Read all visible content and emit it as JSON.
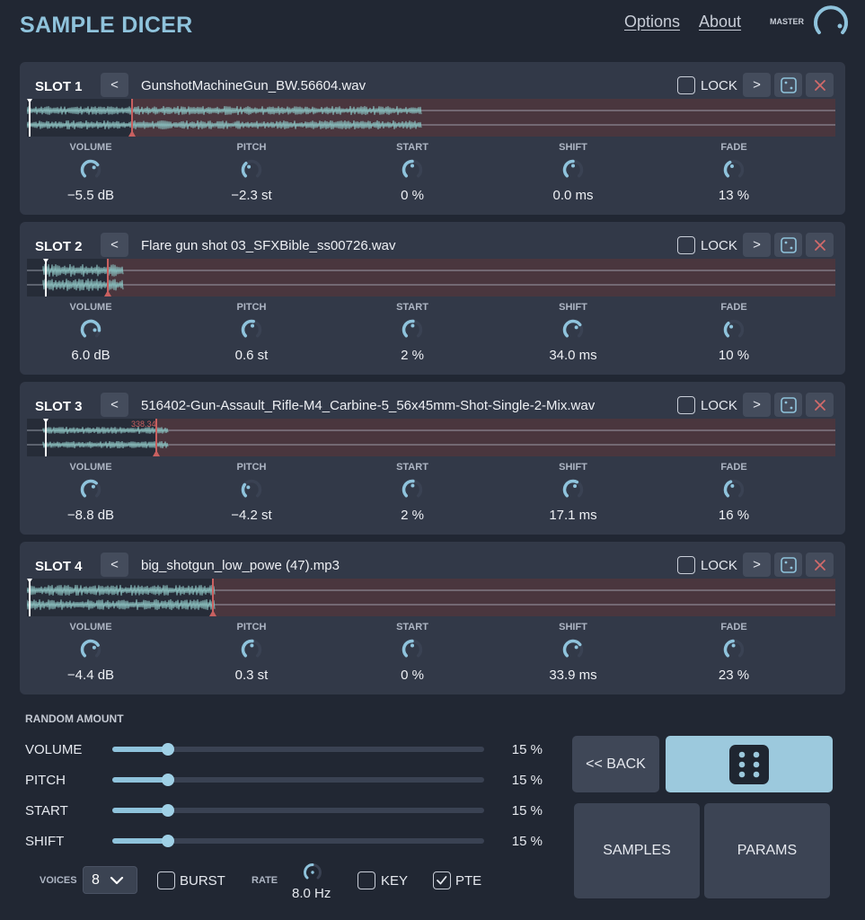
{
  "header": {
    "title": "SAMPLE DICER",
    "options": "Options",
    "about": "About",
    "master": "MASTER"
  },
  "colors": {
    "accent": "#8fc3dc",
    "panel": "#323948",
    "background": "#212733",
    "waveform": "#86b8b8",
    "region": "#c96060"
  },
  "param_labels": [
    "VOLUME",
    "PITCH",
    "START",
    "SHIFT",
    "FADE"
  ],
  "slots": [
    {
      "title": "SLOT 1",
      "file": "GunshotMachineGun_BW.56604.wav",
      "lock": "LOCK",
      "locked": false,
      "values": [
        "−5.5 dB",
        "−2.3 st",
        "0 %",
        "0.0 ms",
        "13 %"
      ],
      "knobs": [
        0.7,
        0.35,
        0.5,
        0.5,
        0.4
      ],
      "region_start": 0.13,
      "start_marker": 0.0,
      "region_label": ""
    },
    {
      "title": "SLOT 2",
      "file": "Flare gun shot 03_SFXBible_ss00726.wav",
      "lock": "LOCK",
      "locked": false,
      "values": [
        "6.0 dB",
        "0.6 st",
        "2 %",
        "34.0 ms",
        "10 %"
      ],
      "knobs": [
        0.85,
        0.55,
        0.52,
        0.7,
        0.35
      ],
      "region_start": 0.1,
      "start_marker": 0.02,
      "region_label": ""
    },
    {
      "title": "SLOT 3",
      "file": "516402-Gun-Assault_Rifle-M4_Carbine-5_56x45mm-Shot-Single-2-Mix.wav",
      "lock": "LOCK",
      "locked": false,
      "values": [
        "−8.8 dB",
        "−4.2 st",
        "2 %",
        "17.1 ms",
        "16 %"
      ],
      "knobs": [
        0.65,
        0.3,
        0.52,
        0.6,
        0.42
      ],
      "region_start": 0.16,
      "start_marker": 0.02,
      "region_label": "338.34"
    },
    {
      "title": "SLOT 4",
      "file": "big_shotgun_low_powe (47).mp3",
      "lock": "LOCK",
      "locked": false,
      "values": [
        "−4.4 dB",
        "0.3 st",
        "0 %",
        "33.9 ms",
        "23 %"
      ],
      "knobs": [
        0.72,
        0.52,
        0.5,
        0.7,
        0.48
      ],
      "region_start": 0.23,
      "start_marker": 0.0,
      "region_label": ""
    }
  ],
  "random": {
    "title": "RANDOM AMOUNT",
    "rows": [
      {
        "label": "VOLUME",
        "value": "15 %",
        "fraction": 0.15
      },
      {
        "label": "PITCH",
        "value": "15 %",
        "fraction": 0.15
      },
      {
        "label": "START",
        "value": "15 %",
        "fraction": 0.15
      },
      {
        "label": "SHIFT",
        "value": "15 %",
        "fraction": 0.15
      }
    ]
  },
  "bottom": {
    "voices_label": "VOICES",
    "voices_value": "8",
    "burst": "BURST",
    "burst_checked": false,
    "rate_label": "RATE",
    "rate_value": "8.0 Hz",
    "key": "KEY",
    "key_checked": false,
    "pte": "PTE",
    "pte_checked": true
  },
  "buttons": {
    "back": "<< BACK",
    "samples": "SAMPLES",
    "params": "PARAMS",
    "dice_icon": "dice-icon"
  }
}
